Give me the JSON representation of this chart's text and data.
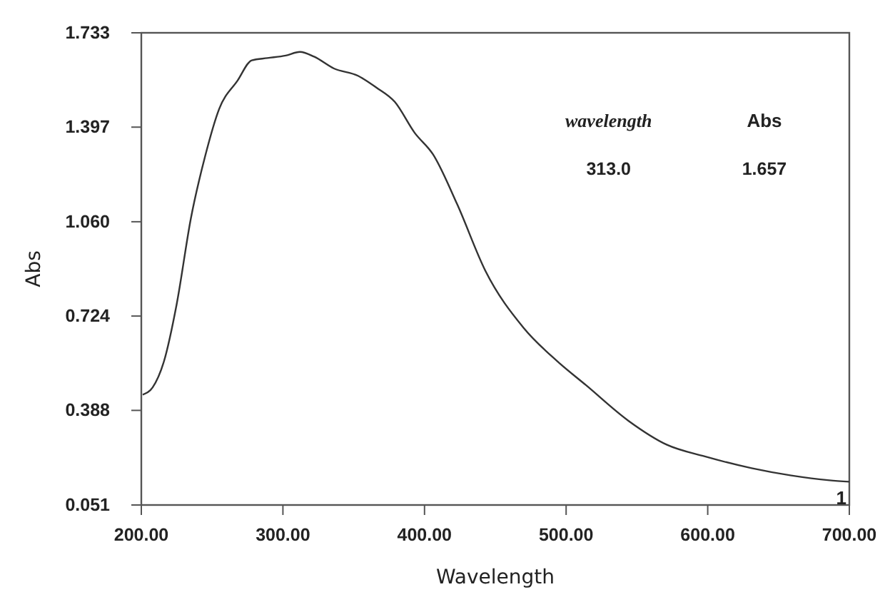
{
  "chart_data": {
    "type": "line",
    "xlabel": "Wavelength",
    "ylabel": "Abs",
    "x": [
      201,
      208,
      216,
      225,
      235,
      245,
      255,
      268,
      278,
      289,
      302,
      312,
      322,
      336,
      353,
      366,
      379,
      393,
      406,
      423,
      443,
      470,
      494,
      514,
      544,
      571,
      598,
      631,
      659,
      686,
      700
    ],
    "series": [
      {
        "color": "#333333",
        "values": [
          0.444,
          0.47,
          0.563,
          0.767,
          1.072,
          1.292,
          1.462,
          1.563,
          1.635,
          1.643,
          1.652,
          1.665,
          1.648,
          1.606,
          1.58,
          1.538,
          1.487,
          1.377,
          1.3,
          1.123,
          0.885,
          0.682,
          0.562,
          0.478,
          0.351,
          0.266,
          0.224,
          0.182,
          0.156,
          0.139,
          0.134
        ]
      }
    ],
    "xlim": [
      200,
      700
    ],
    "ylim": [
      0.051,
      1.733
    ],
    "xticks": [
      {
        "value": 200,
        "label": "200.00"
      },
      {
        "value": 300,
        "label": "300.00"
      },
      {
        "value": 400,
        "label": "400.00"
      },
      {
        "value": 500,
        "label": "500.00"
      },
      {
        "value": 600,
        "label": "600.00"
      },
      {
        "value": 700,
        "label": "700.00"
      }
    ],
    "yticks": [
      {
        "value": 0.051,
        "label": "0.051"
      },
      {
        "value": 0.388,
        "label": "0.388"
      },
      {
        "value": 0.724,
        "label": "0.724"
      },
      {
        "value": 1.06,
        "label": "1.060"
      },
      {
        "value": 1.397,
        "label": "1.397"
      },
      {
        "value": 1.733,
        "label": "1.733"
      }
    ],
    "grid": false,
    "marker": "none",
    "line_style": "solid",
    "annotations": [
      "wavelength",
      "Abs",
      "313.0",
      "1.657",
      {
        "text": "1",
        "x": 700,
        "y": 0.134
      }
    ]
  }
}
